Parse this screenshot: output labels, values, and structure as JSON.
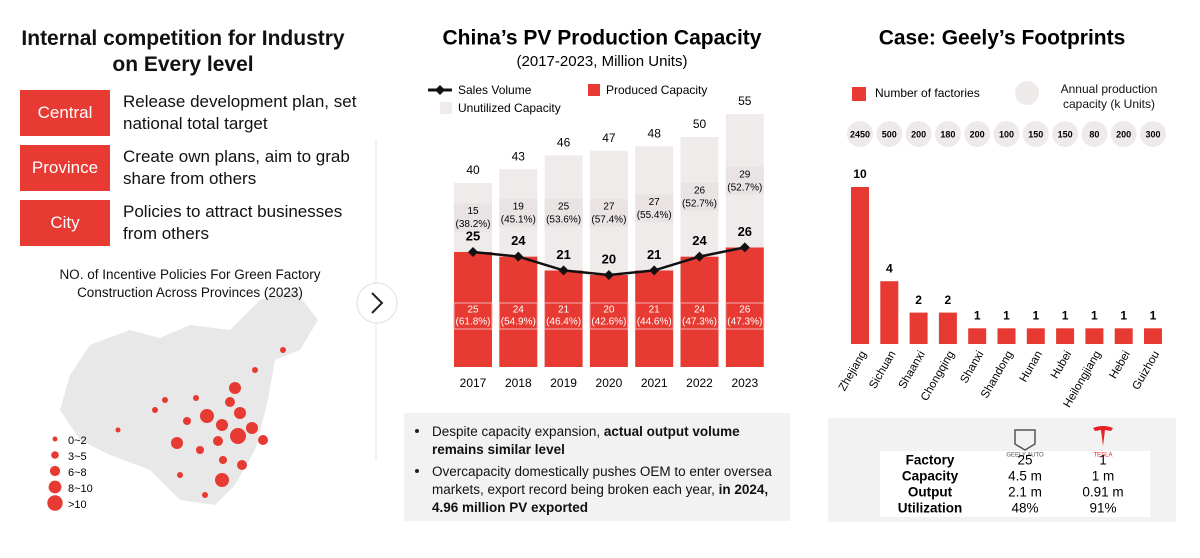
{
  "left_panel": {
    "title": "Internal competition for Industry on Every level",
    "levels": [
      {
        "label": "Central",
        "text": "Release development plan, set national total target"
      },
      {
        "label": "Province",
        "text": "Create own plans, aim to grab share from others"
      },
      {
        "label": "City",
        "text": "Policies to attract businesses from others"
      }
    ],
    "map_title": "NO. of Incentive Policies For Green Factory Construction Across Provinces (2023)",
    "map_legend": [
      "0~2",
      "3~5",
      "6~8",
      "8~10",
      ">10"
    ]
  },
  "chart_data": [
    {
      "type": "bar",
      "title": "China’s PV Production Capacity",
      "subtitle": "(2017-2023, Million Units)",
      "categories": [
        "2017",
        "2018",
        "2019",
        "2020",
        "2021",
        "2022",
        "2023"
      ],
      "series": [
        {
          "name": "Sales Volume",
          "type": "line",
          "color": "#111111",
          "values": [
            25,
            24,
            21,
            20,
            21,
            24,
            26
          ]
        },
        {
          "name": "Produced Capacity",
          "type": "bar",
          "color": "#e63a33",
          "values": [
            25,
            24,
            21,
            20,
            21,
            24,
            26
          ],
          "share_labels": [
            "(61.8%)",
            "(54.9%)",
            "(46.4%)",
            "(42.6%)",
            "(44.6%)",
            "(47.3%)",
            "(47.3%)"
          ]
        },
        {
          "name": "Unutilized Capacity",
          "type": "bar",
          "color": "#f0ebeb",
          "values": [
            15,
            19,
            25,
            27,
            27,
            26,
            29
          ],
          "share_labels": [
            "(38.2%)",
            "(45.1%)",
            "(53.6%)",
            "(57.4%)",
            "(55.4%)",
            "(52.7%)",
            "(52.7%)"
          ]
        }
      ],
      "totals": [
        40,
        43,
        46,
        47,
        48,
        50,
        55
      ],
      "stacked": true,
      "notes": [
        [
          {
            "text": "Despite capacity expansion, ",
            "bold": false
          },
          {
            "text": "actual output volume remains similar level",
            "bold": true
          }
        ],
        [
          {
            "text": "Overcapacity domestically pushes OEM to enter oversea markets, export record being broken each year, ",
            "bold": false
          },
          {
            "text": "in 2024, 4.96 million PV exported",
            "bold": true
          }
        ]
      ]
    },
    {
      "type": "bar",
      "title": "Case: Geely’s Footprints",
      "categories": [
        "Zhejiang",
        "Sichuan",
        "Shaanxi",
        "Chongqing",
        "Shanxi",
        "Shandong",
        "Hunan",
        "Hubei",
        "Heilongjiang",
        "Hebei",
        "Guizhou"
      ],
      "series": [
        {
          "name": "Number of factories",
          "color": "#e63a33",
          "values": [
            10,
            4,
            2,
            2,
            1,
            1,
            1,
            1,
            1,
            1,
            1
          ]
        },
        {
          "name": "Annual production capacity (k Units)",
          "type": "circle-label",
          "color": "#eeeaea",
          "values": [
            2450,
            500,
            200,
            180,
            200,
            100,
            150,
            150,
            80,
            200,
            300
          ]
        }
      ],
      "table": {
        "columns": [
          "GEELY AUTO",
          "TESLA"
        ],
        "rows": [
          [
            "Factory",
            "25",
            "1"
          ],
          [
            "Capacity",
            "4.5 m",
            "1 m"
          ],
          [
            "Output",
            "2.1 m",
            "0.91 m"
          ],
          [
            "Utilization",
            "48%",
            "91%"
          ]
        ]
      }
    }
  ]
}
